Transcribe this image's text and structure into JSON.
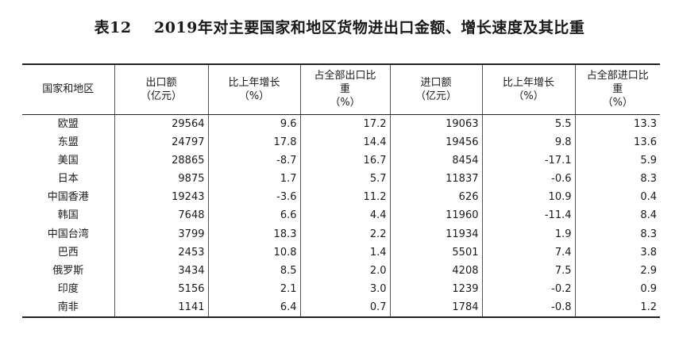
{
  "title": "表12    2019年对主要国家和地区货物进出口金额、增长速度及其比重",
  "headers": [
    {
      "line1": "国家和地区",
      "line2": "",
      "line3": ""
    },
    {
      "line1": "出口额",
      "line2": "（亿元）",
      "line3": ""
    },
    {
      "line1": "比上年增长",
      "line2": "（%）",
      "line3": ""
    },
    {
      "line1": "占全部出口比",
      "line2": "重",
      "line3": "（%）"
    },
    {
      "line1": "进口额",
      "line2": "（亿元）",
      "line3": ""
    },
    {
      "line1": "比上年增长",
      "line2": "（%）",
      "line3": ""
    },
    {
      "line1": "占全部进口比",
      "line2": "重",
      "line3": "（%）"
    }
  ],
  "rows": [
    [
      "欧盟",
      "29564",
      "9.6",
      "17.2",
      "19063",
      "5.5",
      "13.3"
    ],
    [
      "东盟",
      "24797",
      "17.8",
      "14.4",
      "19456",
      "9.8",
      "13.6"
    ],
    [
      "美国",
      "28865",
      "-8.7",
      "16.7",
      "8454",
      "-17.1",
      "5.9"
    ],
    [
      "日本",
      "9875",
      "1.7",
      "5.7",
      "11837",
      "-0.6",
      "8.3"
    ],
    [
      "中国香港",
      "19243",
      "-3.6",
      "11.2",
      "626",
      "10.9",
      "0.4"
    ],
    [
      "韩国",
      "7648",
      "6.6",
      "4.4",
      "11960",
      "-11.4",
      "8.4"
    ],
    [
      "中国台湾",
      "3799",
      "18.3",
      "2.2",
      "11934",
      "1.9",
      "8.3"
    ],
    [
      "巴西",
      "2453",
      "10.8",
      "1.4",
      "5501",
      "7.4",
      "3.8"
    ],
    [
      "俄罗斯",
      "3434",
      "8.5",
      "2.0",
      "4208",
      "7.5",
      "2.9"
    ],
    [
      "印度",
      "5156",
      "2.1",
      "3.0",
      "1239",
      "-0.2",
      "0.9"
    ],
    [
      "南非",
      "1141",
      "6.4",
      "0.7",
      "1784",
      "-0.8",
      "1.2"
    ]
  ]
}
